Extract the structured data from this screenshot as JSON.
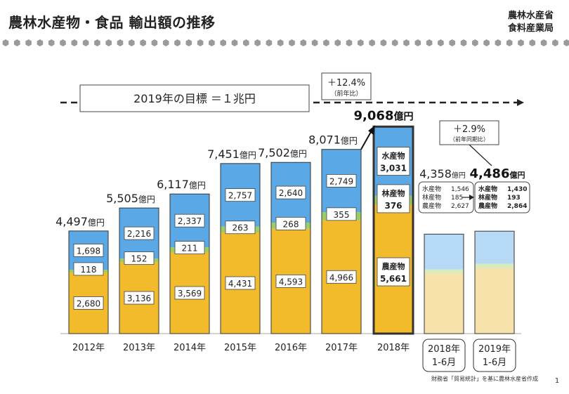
{
  "header": {
    "title": "農林水産物・食品 輸出額の推移",
    "ministry_line1": "農林水産省",
    "ministry_line2": "食料産業局"
  },
  "footer": {
    "source": "財務省「貿易統計」を基に農林水産省作成",
    "page_number": "1"
  },
  "colors": {
    "fishery": "#5aa8e6",
    "forestry": "#9ccc65",
    "agriculture": "#f2bb2c",
    "fishery_light": "#b6d9f5",
    "forestry_light": "#d8ebbd",
    "agriculture_light": "#f8e2ab"
  },
  "chart_data": {
    "type": "bar",
    "stacked": true,
    "unit": "億円",
    "categories": [
      "2012年",
      "2013年",
      "2014年",
      "2015年",
      "2016年",
      "2017年",
      "2018年",
      "2018年\n1-6月",
      "2019年\n1-6月"
    ],
    "category_lines": [
      [
        "2012年"
      ],
      [
        "2013年"
      ],
      [
        "2014年"
      ],
      [
        "2015年"
      ],
      [
        "2016年"
      ],
      [
        "2017年"
      ],
      [
        "2018年"
      ],
      [
        "2018年",
        "1-6月"
      ],
      [
        "2019年",
        "1-6月"
      ]
    ],
    "series": [
      {
        "name": "農産物",
        "values": [
          2680,
          3136,
          3569,
          4431,
          4593,
          4966,
          5661,
          2627,
          2864
        ]
      },
      {
        "name": "林産物",
        "values": [
          118,
          152,
          211,
          263,
          268,
          355,
          376,
          185,
          193
        ]
      },
      {
        "name": "水産物",
        "values": [
          1698,
          2216,
          2337,
          2757,
          2640,
          2749,
          3031,
          1546,
          1430
        ]
      }
    ],
    "segment_labels": [
      [
        "2,680",
        "118",
        "1,698"
      ],
      [
        "3,136",
        "152",
        "2,216"
      ],
      [
        "3,569",
        "211",
        "2,337"
      ],
      [
        "4,431",
        "263",
        "2,757"
      ],
      [
        "4,593",
        "268",
        "2,640"
      ],
      [
        "4,966",
        "355",
        "2,749"
      ],
      [
        "5,661",
        "376",
        "3,031"
      ]
    ],
    "totals": [
      4497,
      5505,
      6117,
      7451,
      7502,
      8071,
      9068,
      4358,
      4486
    ],
    "total_labels": [
      "4,497",
      "5,505",
      "6,117",
      "7,451",
      "7,502",
      "8,071",
      "9,068",
      "4,358",
      "4,486"
    ],
    "highlight_2018_names": [
      "水産物",
      "林産物",
      "農産物"
    ],
    "target": {
      "label": "2019年の目標 ＝１兆円",
      "value": 10000
    },
    "growth_2018": {
      "value": "＋12.4%",
      "note": "（前年比）"
    },
    "growth_half": {
      "value": "＋2.9%",
      "note": "（前年同期比）"
    },
    "breakdown_2018h1": [
      {
        "name": "水産物",
        "value": "1,546"
      },
      {
        "name": "林産物",
        "value": "185"
      },
      {
        "name": "農産物",
        "value": "2,627"
      }
    ],
    "breakdown_2019h1": [
      {
        "name": "水産物",
        "value": "1,430"
      },
      {
        "name": "林産物",
        "value": "193"
      },
      {
        "name": "農産物",
        "value": "2,864"
      }
    ]
  }
}
